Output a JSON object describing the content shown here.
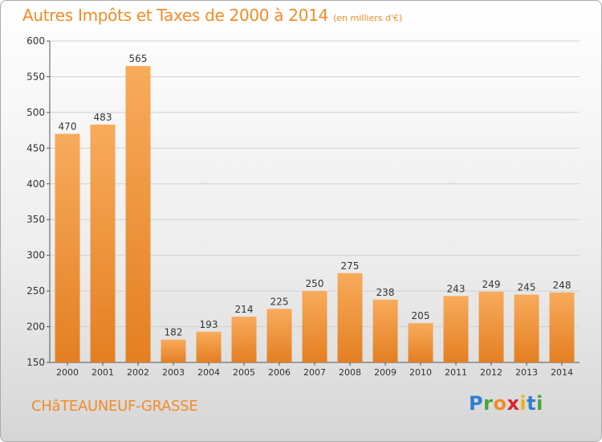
{
  "header": {
    "title": "Autres Impôts et Taxes de 2000 à 2014",
    "subtitle": "(en milliers d'€)"
  },
  "footer": {
    "city": "CHâTEAUNEUF-GRASSE",
    "logo_letters": [
      "P",
      "r",
      "o",
      "x",
      "i",
      "t",
      "i"
    ]
  },
  "colors": {
    "bar_light": "#f8ab5c",
    "bar_dark": "#e47f22",
    "title": "#f28c28",
    "axis": "#555555",
    "grid": "#d0d0d0"
  },
  "chart_data": {
    "type": "bar",
    "title": "Autres Impôts et Taxes de 2000 à 2014",
    "subtitle": "(en milliers d'€)",
    "categories": [
      "2000",
      "2001",
      "2002",
      "2003",
      "2004",
      "2005",
      "2006",
      "2007",
      "2008",
      "2009",
      "2010",
      "2011",
      "2012",
      "2013",
      "2014"
    ],
    "values": [
      470,
      483,
      565,
      182,
      193,
      214,
      225,
      250,
      275,
      238,
      205,
      243,
      249,
      245,
      248
    ],
    "ylim": [
      150,
      600
    ],
    "yticks": [
      150,
      200,
      250,
      300,
      350,
      400,
      450,
      500,
      550,
      600
    ],
    "grid": true,
    "data_labels": true
  }
}
